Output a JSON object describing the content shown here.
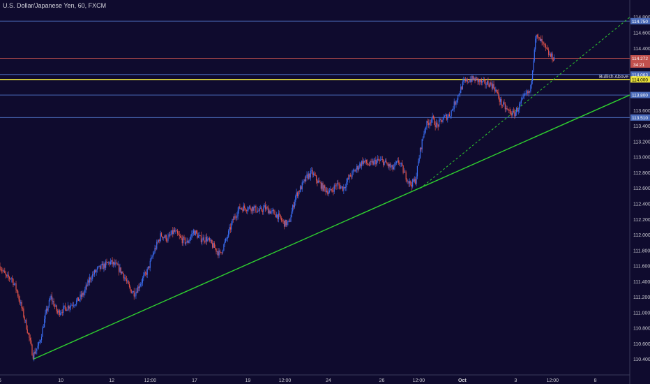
{
  "header": {
    "title": "U.S. Dollar/Japanese Yen, 60, FXCM"
  },
  "colors": {
    "background": "#0f0b2e",
    "up": "#3a6df0",
    "down": "#e2534a",
    "wick": "#9aa0b8",
    "hline_blue": "#4a6ab8",
    "hline_red": "#b54b4b",
    "hline_yellow": "#e8e03a",
    "trend_green": "#2fd02f",
    "axis_text": "#c8c8d0"
  },
  "chart_data": {
    "type": "candlestick",
    "title": "U.S. Dollar/Japanese Yen, 60, FXCM",
    "ylim": [
      110.2,
      114.95
    ],
    "y_ticks": [
      110.4,
      110.6,
      110.8,
      111.0,
      111.2,
      111.4,
      111.6,
      111.8,
      112.0,
      112.2,
      112.4,
      112.6,
      112.8,
      113.0,
      113.2,
      113.4,
      113.6,
      113.8,
      114.0,
      114.2,
      114.4,
      114.6,
      114.8
    ],
    "y_tick_labels": [
      "110.400",
      "110.600",
      "110.800",
      "111.000",
      "111.200",
      "111.400",
      "111.600",
      "111.800",
      "112.000",
      "112.200",
      "112.400",
      "112.600",
      "112.800",
      "113.000",
      "113.200",
      "113.400",
      "113.600",
      "113.800",
      "114.000",
      "114.200",
      "114.400",
      "114.600",
      "114.800"
    ],
    "x_ticks": [
      {
        "label": "6",
        "t": 0
      },
      {
        "label": "10",
        "t": 74
      },
      {
        "label": "12",
        "t": 136
      },
      {
        "label": "12:00",
        "t": 183
      },
      {
        "label": "17",
        "t": 237
      },
      {
        "label": "19",
        "t": 302
      },
      {
        "label": "12:00",
        "t": 347
      },
      {
        "label": "24",
        "t": 400
      },
      {
        "label": "26",
        "t": 465
      },
      {
        "label": "12:00",
        "t": 510
      },
      {
        "label": "Oct",
        "t": 563
      },
      {
        "label": "3",
        "t": 628
      },
      {
        "label": "12:00",
        "t": 673
      },
      {
        "label": "8",
        "t": 725
      }
    ],
    "x_range": [
      0,
      767
    ],
    "price_path": [
      [
        0,
        111.6
      ],
      [
        8,
        111.45
      ],
      [
        14,
        111.45
      ],
      [
        20,
        111.3
      ],
      [
        28,
        111.0
      ],
      [
        34,
        110.75
      ],
      [
        40,
        110.45
      ],
      [
        48,
        110.6
      ],
      [
        56,
        111.0
      ],
      [
        62,
        111.2
      ],
      [
        70,
        111.0
      ],
      [
        78,
        111.05
      ],
      [
        86,
        111.1
      ],
      [
        94,
        111.15
      ],
      [
        102,
        111.25
      ],
      [
        110,
        111.45
      ],
      [
        118,
        111.55
      ],
      [
        126,
        111.6
      ],
      [
        134,
        111.65
      ],
      [
        142,
        111.6
      ],
      [
        150,
        111.5
      ],
      [
        158,
        111.3
      ],
      [
        164,
        111.25
      ],
      [
        172,
        111.4
      ],
      [
        180,
        111.55
      ],
      [
        188,
        111.8
      ],
      [
        196,
        112.0
      ],
      [
        204,
        111.95
      ],
      [
        212,
        112.05
      ],
      [
        220,
        111.95
      ],
      [
        228,
        111.9
      ],
      [
        236,
        112.05
      ],
      [
        244,
        111.95
      ],
      [
        252,
        111.95
      ],
      [
        260,
        111.85
      ],
      [
        268,
        111.75
      ],
      [
        276,
        111.95
      ],
      [
        284,
        112.2
      ],
      [
        292,
        112.35
      ],
      [
        300,
        112.35
      ],
      [
        308,
        112.35
      ],
      [
        316,
        112.3
      ],
      [
        322,
        112.35
      ],
      [
        330,
        112.3
      ],
      [
        338,
        112.25
      ],
      [
        346,
        112.15
      ],
      [
        352,
        112.15
      ],
      [
        360,
        112.5
      ],
      [
        366,
        112.6
      ],
      [
        374,
        112.75
      ],
      [
        380,
        112.8
      ],
      [
        386,
        112.7
      ],
      [
        394,
        112.6
      ],
      [
        402,
        112.55
      ],
      [
        410,
        112.65
      ],
      [
        418,
        112.6
      ],
      [
        426,
        112.75
      ],
      [
        434,
        112.85
      ],
      [
        442,
        112.95
      ],
      [
        450,
        112.9
      ],
      [
        458,
        112.95
      ],
      [
        466,
        112.95
      ],
      [
        472,
        112.9
      ],
      [
        478,
        112.85
      ],
      [
        486,
        112.95
      ],
      [
        492,
        112.8
      ],
      [
        500,
        112.65
      ],
      [
        506,
        112.7
      ],
      [
        512,
        113.1
      ],
      [
        518,
        113.4
      ],
      [
        526,
        113.5
      ],
      [
        532,
        113.4
      ],
      [
        540,
        113.5
      ],
      [
        548,
        113.55
      ],
      [
        556,
        113.75
      ],
      [
        564,
        113.95
      ],
      [
        572,
        114.0
      ],
      [
        580,
        114.0
      ],
      [
        588,
        113.95
      ],
      [
        596,
        113.95
      ],
      [
        602,
        113.9
      ],
      [
        610,
        113.7
      ],
      [
        618,
        113.6
      ],
      [
        626,
        113.55
      ],
      [
        632,
        113.65
      ],
      [
        640,
        113.8
      ],
      [
        646,
        113.85
      ],
      [
        652,
        114.55
      ],
      [
        658,
        114.5
      ],
      [
        664,
        114.4
      ],
      [
        670,
        114.3
      ],
      [
        676,
        114.27
      ]
    ],
    "horizontal_levels": [
      {
        "price": 114.75,
        "color": "hline_blue",
        "label": "114.750"
      },
      {
        "price": 114.272,
        "color": "hline_red",
        "label": "114.272"
      },
      {
        "price": 114.063,
        "color": "hline_blue",
        "label": "114.063"
      },
      {
        "price": 114.0,
        "color": "hline_yellow",
        "label": "114.000",
        "annotation": "Bullish Above"
      },
      {
        "price": 113.8,
        "color": "hline_blue",
        "label": "113.800"
      },
      {
        "price": 113.51,
        "color": "hline_blue",
        "label": "113.510"
      }
    ],
    "countdown_label": "34:21",
    "trendlines": [
      {
        "style": "solid",
        "color": "trend_green",
        "from": [
          40,
          110.4
        ],
        "to": [
          767,
          113.8
        ]
      },
      {
        "style": "dashed",
        "color": "trend_green",
        "from": [
          512,
          112.6
        ],
        "to": [
          767,
          114.8
        ]
      }
    ]
  }
}
